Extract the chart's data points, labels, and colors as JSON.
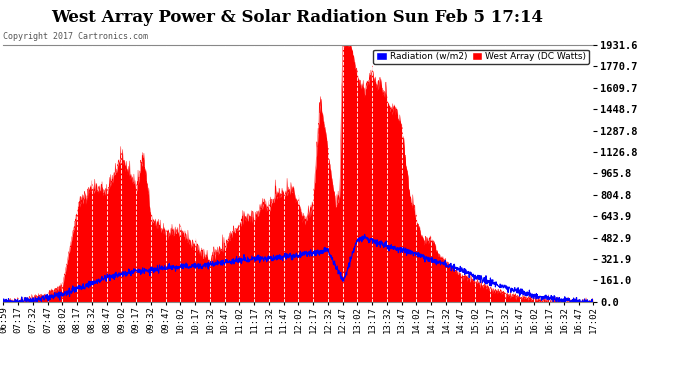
{
  "title": "West Array Power & Solar Radiation Sun Feb 5 17:14",
  "copyright": "Copyright 2017 Cartronics.com",
  "background_color": "#ffffff",
  "plot_bg_color": "#ffffff",
  "grid_color": "#bbbbbb",
  "right_yaxis_labels": [
    1931.6,
    1770.7,
    1609.7,
    1448.7,
    1287.8,
    1126.8,
    965.8,
    804.8,
    643.9,
    482.9,
    321.9,
    161.0,
    0.0
  ],
  "x_tick_labels": [
    "06:59",
    "07:17",
    "07:32",
    "07:47",
    "08:02",
    "08:17",
    "08:32",
    "08:47",
    "09:02",
    "09:17",
    "09:32",
    "09:47",
    "10:02",
    "10:17",
    "10:32",
    "10:47",
    "11:02",
    "11:17",
    "11:32",
    "11:47",
    "12:02",
    "12:17",
    "12:32",
    "12:47",
    "13:02",
    "13:17",
    "13:32",
    "13:47",
    "14:02",
    "14:17",
    "14:32",
    "14:47",
    "15:02",
    "15:17",
    "15:32",
    "15:47",
    "16:02",
    "16:17",
    "16:32",
    "16:47",
    "17:02"
  ],
  "legend_labels": [
    "Radiation (w/m2)",
    "West Array (DC Watts)"
  ],
  "legend_colors": [
    "#0000ff",
    "#ff0000"
  ],
  "fill_color": "#ff0000",
  "line_color": "#0000ff",
  "title_fontsize": 12,
  "tick_fontsize": 6.5,
  "ylabel_right_fontsize": 7.5,
  "ymax": 1931.6
}
